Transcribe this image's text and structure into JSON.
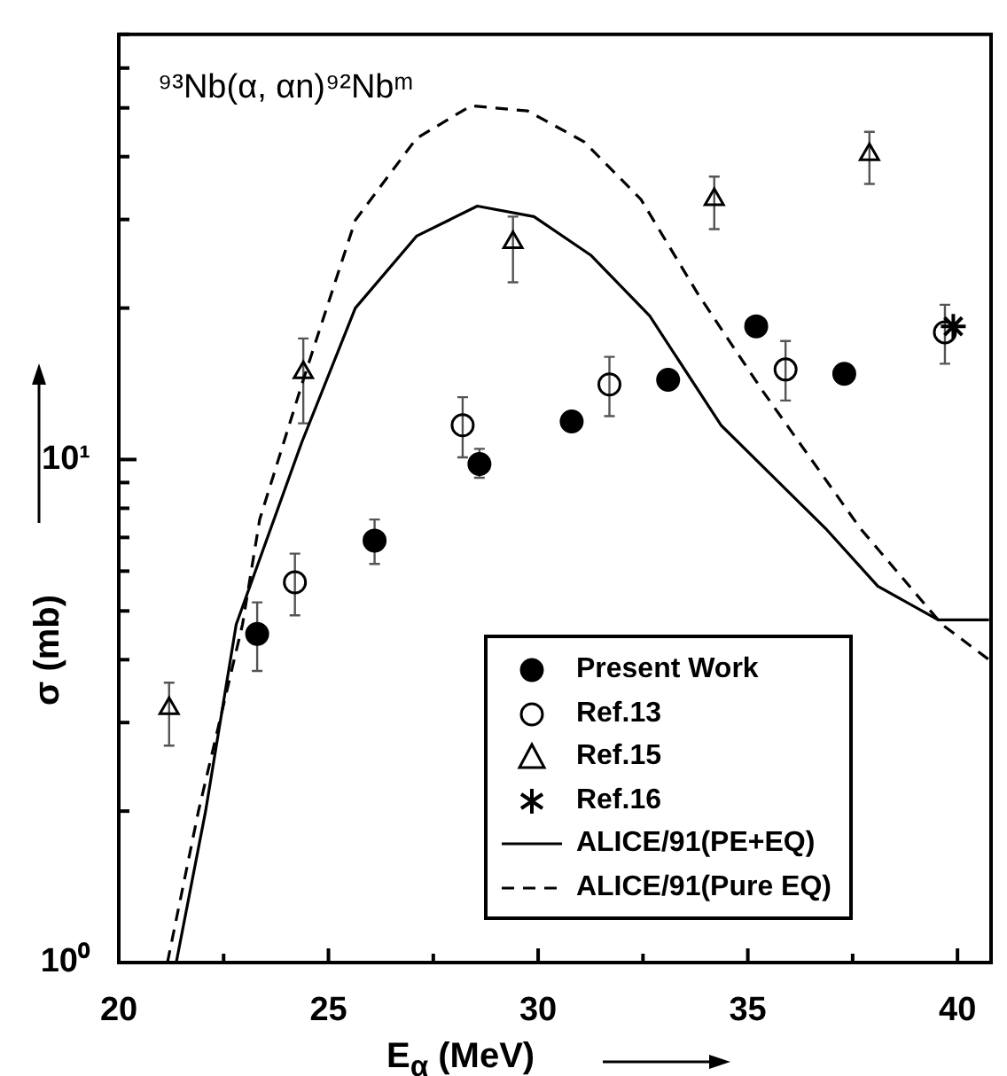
{
  "chart_data": {
    "type": "scatter",
    "title": "⁹³Nb(α, αn)⁹²Nbᵐ",
    "xlabel": "E$_{α}$ (MeV)",
    "ylabel": "σ (mb)",
    "log": "y",
    "xlim": [
      20,
      40.8
    ],
    "xticks": [
      20,
      {
        "value": 22.5,
        "label": null
      },
      25,
      {
        "value": 27.5,
        "label": null
      },
      30,
      {
        "value": 32.5,
        "label": null
      },
      35,
      {
        "value": 37.5,
        "label": null
      },
      40
    ],
    "ylim": [
      1,
      70
    ],
    "yticks": [
      {
        "value": 1,
        "label": "10⁰"
      },
      {
        "value": 2,
        "label": null
      },
      {
        "value": 3,
        "label": null
      },
      {
        "value": 4,
        "label": null
      },
      {
        "value": 5,
        "label": null
      },
      {
        "value": 6,
        "label": null
      },
      {
        "value": 7,
        "label": null
      },
      {
        "value": 8,
        "label": null
      },
      {
        "value": 9,
        "label": null
      },
      {
        "value": 10,
        "label": "10¹"
      },
      {
        "value": 20,
        "label": null
      },
      {
        "value": 30,
        "label": null
      },
      {
        "value": 40,
        "label": null
      },
      {
        "value": 50,
        "label": null
      },
      {
        "value": 60,
        "label": null
      },
      {
        "value": 70,
        "label": null
      }
    ],
    "legend": "bottom right",
    "series": [
      {
        "name": "Present Work",
        "marker": "circle",
        "color": "#000000",
        "x": [
          23.3,
          26.1,
          28.6,
          30.8,
          33.1,
          35.2,
          37.3
        ],
        "values": [
          4.5,
          6.9,
          9.8,
          11.9,
          14.4,
          18.4,
          14.8
        ],
        "errors": [
          [
            3.8,
            5.2
          ],
          [
            6.2,
            7.6
          ],
          [
            9.2,
            10.5
          ],
          null,
          null,
          null,
          null
        ]
      },
      {
        "name": "Ref.13",
        "marker": "circle",
        "color": "#000000",
        "x": [
          24.2,
          28.2,
          31.7,
          35.9,
          39.7
        ],
        "values": [
          5.7,
          11.7,
          14.1,
          15.1,
          17.9
        ],
        "errors": [
          [
            4.9,
            6.5
          ],
          [
            10.1,
            13.3
          ],
          [
            12.2,
            16.0
          ],
          [
            13.1,
            17.2
          ],
          [
            15.5,
            20.3
          ]
        ]
      },
      {
        "name": "Ref.15",
        "marker": "triangle",
        "color": "#000000",
        "x": [
          21.2,
          24.4,
          29.4,
          34.2,
          37.9
        ],
        "values": [
          3.2,
          14.9,
          27.0,
          32.9,
          40.4
        ],
        "errors": [
          [
            2.7,
            3.6
          ],
          [
            11.8,
            17.4
          ],
          [
            22.5,
            30.4
          ],
          [
            28.7,
            36.5
          ],
          [
            35.3,
            44.8
          ]
        ]
      },
      {
        "name": "Ref.16",
        "marker": "cross",
        "color": "#000000",
        "x": [
          39.9
        ],
        "values": [
          18.4
        ]
      },
      {
        "name": "ALICE/91(PE+EQ)",
        "type": "line",
        "marker": "none",
        "line_style": "solid",
        "color": "#000000",
        "x": [
          21.37,
          22.07,
          22.8,
          24.36,
          25.64,
          27.1,
          28.55,
          29.9,
          31.25,
          32.66,
          34.36,
          36.85,
          38.1,
          39.54,
          40.75
        ],
        "values": [
          1,
          2.0,
          4.7,
          10.8,
          20.0,
          27.8,
          31.9,
          30.4,
          25.5,
          19.3,
          11.7,
          7.3,
          5.6,
          4.8,
          4.8
        ]
      },
      {
        "name": "ALICE/91(Pure EQ)",
        "type": "line",
        "marker": "none",
        "line_style": "dashed",
        "color": "#000000",
        "x": [
          21.16,
          21.9,
          22.95,
          23.36,
          24.4,
          25.64,
          27.1,
          28.4,
          29.75,
          31.1,
          32.45,
          33.8,
          35.35,
          37.68,
          39.63,
          40.75
        ],
        "values": [
          1,
          2.0,
          4.7,
          7.6,
          14.4,
          29.9,
          43.5,
          50.5,
          49.3,
          42.8,
          32.9,
          21.4,
          13.7,
          7.3,
          4.7,
          4.0
        ]
      }
    ]
  }
}
